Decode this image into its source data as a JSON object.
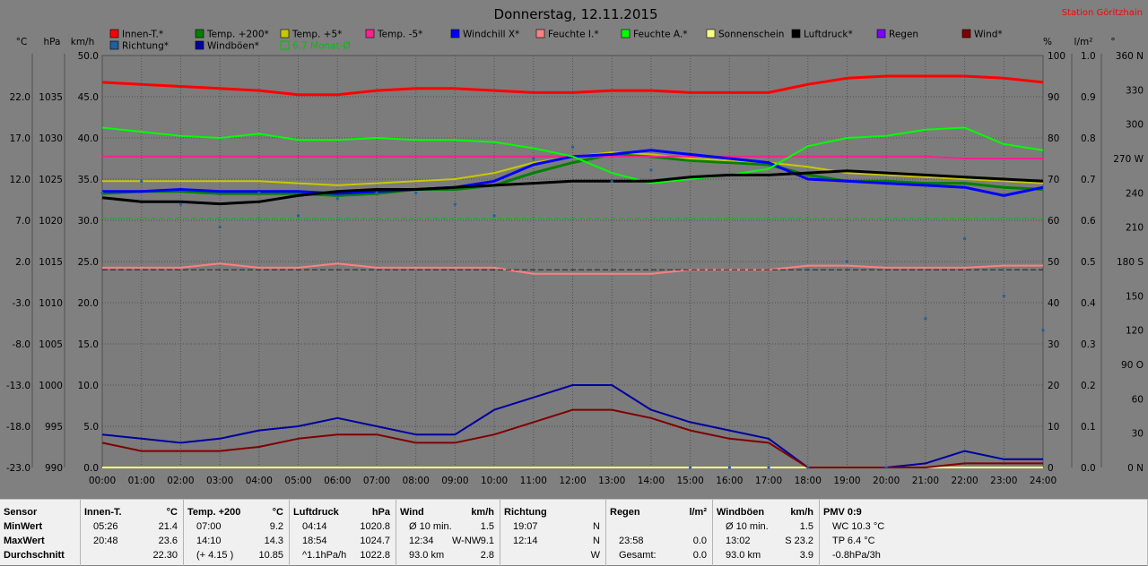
{
  "title": "Donnerstag, 12.11.2015",
  "station": "Station Göritzhain",
  "axis_units": {
    "temp": "°C",
    "pressure": "hPa",
    "speed": "km/h",
    "percent": "%",
    "rain": "l/m²",
    "direction": "°"
  },
  "legend": [
    {
      "label": "Innen-T.*",
      "color": "#ff0000",
      "dashed": false
    },
    {
      "label": "Temp. +200*",
      "color": "#008000",
      "dashed": false
    },
    {
      "label": "Temp. +5*",
      "color": "#c8c800",
      "dashed": false
    },
    {
      "label": "Temp. -5*",
      "color": "#ff1f8f",
      "dashed": false
    },
    {
      "label": "Windchill X*",
      "color": "#0000ff",
      "dashed": false
    },
    {
      "label": "Feuchte I.*",
      "color": "#ff8080",
      "dashed": false
    },
    {
      "label": "Feuchte A.*",
      "color": "#00ff00",
      "dashed": false
    },
    {
      "label": "Sonnenschein",
      "color": "#ffff80",
      "dashed": false
    },
    {
      "label": "Luftdruck*",
      "color": "#000000",
      "dashed": false
    },
    {
      "label": "Regen",
      "color": "#8000ff",
      "dashed": false
    },
    {
      "label": "Wind*",
      "color": "#800000",
      "dashed": false
    },
    {
      "label": "Richtung*",
      "color": "#2060a0",
      "dashed": false
    },
    {
      "label": "Windböen*",
      "color": "#0000a0",
      "dashed": false
    },
    {
      "label": "6.7 Monat-Ø",
      "color": "#00c000",
      "dashed": true
    }
  ],
  "chart_data": {
    "type": "line",
    "title": "Donnerstag, 12.11.2015",
    "x_ticks": [
      "00:00",
      "01:00",
      "02:00",
      "03:00",
      "04:00",
      "05:00",
      "06:00",
      "07:00",
      "08:00",
      "09:00",
      "10:00",
      "11:00",
      "12:00",
      "13:00",
      "14:00",
      "15:00",
      "16:00",
      "17:00",
      "18:00",
      "19:00",
      "20:00",
      "21:00",
      "22:00",
      "23:00",
      "24:00"
    ],
    "axes": {
      "temp": {
        "label": "°C",
        "ticks": [
          "22.0",
          "17.0",
          "12.0",
          "7.0",
          "2.0",
          "-3.0",
          "-8.0",
          "-13.0",
          "-18.0",
          "-23.0"
        ],
        "range": [
          -23,
          27
        ]
      },
      "pressure": {
        "label": "hPa",
        "ticks": [
          "1035",
          "1030",
          "1025",
          "1020",
          "1015",
          "1010",
          "1005",
          "1000",
          "995",
          "990"
        ],
        "range": [
          990,
          1040
        ]
      },
      "speed": {
        "label": "km/h",
        "ticks": [
          "50.0",
          "45.0",
          "40.0",
          "35.0",
          "30.0",
          "25.0",
          "20.0",
          "15.0",
          "10.0",
          "5.0",
          "0.0"
        ],
        "range": [
          0,
          50
        ]
      },
      "percent": {
        "label": "%",
        "ticks": [
          "100",
          "90",
          "80",
          "70",
          "60",
          "50",
          "40",
          "30",
          "20",
          "10",
          "0"
        ],
        "range": [
          0,
          100
        ]
      },
      "rain": {
        "label": "l/m²",
        "ticks": [
          "1.0",
          "0.9",
          "0.8",
          "0.7",
          "0.6",
          "0.5",
          "0.4",
          "0.3",
          "0.2",
          "0.1",
          "0.0"
        ],
        "range": [
          0,
          1
        ]
      },
      "direction": {
        "label": "°",
        "ticks": [
          "360 N",
          "330",
          "300",
          "270 W",
          "240",
          "210",
          "180 S",
          "150",
          "120",
          "90 O",
          "60",
          "30",
          "0 N"
        ],
        "range": [
          0,
          360
        ]
      }
    },
    "grid": true,
    "x_hours": [
      0,
      1,
      2,
      3,
      4,
      5,
      6,
      7,
      8,
      9,
      10,
      11,
      12,
      13,
      14,
      15,
      16,
      17,
      18,
      19,
      20,
      21,
      22,
      23,
      24
    ],
    "series": [
      {
        "name": "Innen-T.*",
        "color": "#ff0000",
        "axis": "percent",
        "width": 3,
        "values": [
          93.5,
          93,
          92.5,
          92,
          91.5,
          90.5,
          90.5,
          91.5,
          92,
          92,
          91.5,
          91,
          91,
          91.5,
          91.5,
          91,
          91,
          91,
          93,
          94.5,
          95,
          95,
          95,
          94.5,
          93.5
        ]
      },
      {
        "name": "Temp. +200*",
        "color": "#008000",
        "axis": "percent",
        "width": 3,
        "values": [
          66.5,
          67,
          67,
          66.5,
          66.5,
          66.5,
          66,
          66.5,
          67.5,
          67.5,
          68.5,
          71.5,
          74,
          76,
          75.5,
          74.5,
          74,
          73.5,
          71,
          69.5,
          69.5,
          69,
          69,
          68,
          67.5
        ]
      },
      {
        "name": "Temp. +5*",
        "color": "#c8c800",
        "axis": "percent",
        "width": 2,
        "values": [
          69.5,
          69.5,
          69.5,
          69.5,
          69.5,
          69,
          68.5,
          69,
          69.5,
          70,
          71.5,
          74,
          75.5,
          76.5,
          76,
          75,
          74.5,
          74,
          73,
          71.5,
          71,
          70.5,
          70,
          69.5,
          69
        ]
      },
      {
        "name": "Temp. -5*",
        "color": "#ff1f8f",
        "axis": "percent",
        "width": 2,
        "values": [
          75.5,
          75.5,
          75.5,
          75.5,
          75.5,
          75.5,
          75.5,
          75.5,
          75.5,
          75.5,
          75.5,
          75.5,
          75.5,
          75.5,
          75.5,
          75.5,
          75.5,
          75.5,
          75.5,
          75.5,
          75.5,
          75.5,
          75,
          75,
          75
        ]
      },
      {
        "name": "Windchill X*",
        "color": "#0000ff",
        "axis": "percent",
        "width": 3,
        "values": [
          67,
          67,
          67.5,
          67,
          67,
          67,
          66.5,
          67,
          67.5,
          68,
          69.5,
          73.5,
          75.5,
          76,
          77,
          76,
          75,
          74,
          70,
          69.5,
          69,
          68.5,
          68,
          66,
          68
        ]
      },
      {
        "name": "Feuchte I.*",
        "color": "#ff8080",
        "axis": "percent",
        "width": 2,
        "values": [
          48.5,
          48.5,
          48.5,
          49.5,
          48.5,
          48.5,
          49.5,
          48.5,
          48.5,
          48.5,
          48.5,
          47,
          47,
          47,
          47,
          48,
          48,
          48,
          49,
          49,
          48.5,
          48.5,
          48.5,
          49,
          49
        ]
      },
      {
        "name": "Feuchte A.*",
        "color": "#00ff00",
        "axis": "percent",
        "width": 2,
        "values": [
          82.5,
          81.5,
          80.5,
          80,
          81,
          79.5,
          79.5,
          80,
          79.5,
          79.5,
          79,
          77.5,
          75.5,
          71.5,
          69,
          70,
          71,
          72.5,
          78,
          80,
          80.5,
          82,
          82.5,
          78.5,
          77
        ]
      },
      {
        "name": "Luftdruck*",
        "color": "#000000",
        "axis": "percent",
        "width": 3,
        "values": [
          65.5,
          64.5,
          64.5,
          64,
          64.5,
          66,
          67,
          67.5,
          67.5,
          68,
          68.5,
          69,
          69.5,
          69.5,
          69.5,
          70.5,
          71,
          71,
          71.5,
          72,
          71.5,
          71,
          70.5,
          70,
          69.5
        ]
      },
      {
        "name": "Sonnenschein",
        "color": "#ffff80",
        "axis": "percent",
        "width": 2,
        "values": [
          0,
          0,
          0,
          0,
          0,
          0,
          0,
          0,
          0,
          0,
          0,
          0,
          0,
          0,
          0,
          0,
          0,
          0,
          0,
          0,
          0,
          0,
          0,
          0,
          0
        ]
      },
      {
        "name": "6.7 Monat-Ø",
        "color": "#00c000",
        "axis": "percent",
        "width": 1,
        "dashed": true,
        "values": [
          60.5,
          60.5,
          60.5,
          60.5,
          60.5,
          60.5,
          60.5,
          60.5,
          60.5,
          60.5,
          60.5,
          60.5,
          60.5,
          60.5,
          60.5,
          60.5,
          60.5,
          60.5,
          60.5,
          60.5,
          60.5,
          60.5,
          60.5,
          60.5,
          60.5
        ]
      },
      {
        "name": "",
        "color": "#202020",
        "axis": "percent",
        "width": 1,
        "dashed": true,
        "values": [
          48,
          48,
          48,
          48,
          48,
          48,
          48,
          48,
          48,
          48,
          48,
          48,
          48,
          48,
          48,
          48,
          48,
          48,
          48,
          48,
          48,
          48,
          48,
          48,
          48
        ]
      },
      {
        "name": "Windböen*",
        "color": "#0000a0",
        "axis": "speed",
        "width": 2,
        "values": [
          4,
          3.5,
          3,
          3.5,
          4.5,
          5,
          6,
          5,
          4,
          4,
          7,
          8.5,
          10,
          10,
          7,
          5.5,
          4.5,
          3.5,
          0,
          0,
          0,
          0.5,
          2,
          1,
          1
        ]
      },
      {
        "name": "Wind*",
        "color": "#800000",
        "axis": "speed",
        "width": 2,
        "values": [
          3,
          2,
          2,
          2,
          2.5,
          3.5,
          4,
          4,
          3,
          3,
          4,
          5.5,
          7,
          7,
          6,
          4.5,
          3.5,
          3,
          0,
          0,
          0,
          0,
          0.5,
          0.5,
          0.5
        ]
      },
      {
        "name": "Richtung*",
        "color": "#2060a0",
        "axis": "direction",
        "scatter": true,
        "values": [
          240,
          250,
          230,
          210,
          240,
          220,
          235,
          240,
          240,
          230,
          220,
          270,
          280,
          250,
          260,
          0,
          0,
          0,
          0,
          180,
          0,
          130,
          200,
          150,
          120
        ]
      }
    ]
  },
  "stats": {
    "col0": {
      "h": "Sensor",
      "r1": "MinWert",
      "r2": "MaxWert",
      "r3": "Durchschnitt"
    },
    "col1": {
      "h1": "Innen-T.",
      "h2": "°C",
      "r1a": "05:26",
      "r1b": "21.4",
      "r2a": "20:48",
      "r2b": "23.6",
      "r3b": "22.30"
    },
    "col2": {
      "h1": "Temp. +200",
      "h2": "°C",
      "r1a": "07:00",
      "r1b": "9.2",
      "r2a": "14:10",
      "r2b": "14.3",
      "r3a": "(+ 4.15 )",
      "r3b": "10.85"
    },
    "col3": {
      "h1": "Luftdruck",
      "h2": "hPa",
      "r1a": "04:14",
      "r1b": "1020.8",
      "r2a": "18:54",
      "r2b": "1024.7",
      "r3a": "^1.1hPa/h",
      "r3b": "1022.8"
    },
    "col4": {
      "h1": "Wind",
      "h2": "km/h",
      "r1a": "Ø 10 min.",
      "r1b": "1.5",
      "r2a": "12:34",
      "r2m": "W-NW",
      "r2b": "9.1",
      "r3a": "93.0 km",
      "r3b": "2.8"
    },
    "col5": {
      "h1": "Richtung",
      "r1a": "19:07",
      "r1b": "N",
      "r2a": "12:14",
      "r2b": "N",
      "r3b": "W"
    },
    "col6": {
      "h1": "Regen",
      "h2": "l/m²",
      "r2a": "23:58",
      "r2b": "0.0",
      "r3a": "Gesamt:",
      "r3b": "0.0"
    },
    "col7": {
      "h1": "Windböen",
      "h2": "km/h",
      "r1a": "Ø 10 min.",
      "r1b": "1.5",
      "r2a": "13:02",
      "r2b": "S 23.2",
      "r3a": "93.0 km",
      "r3b": "3.9"
    },
    "col8": {
      "h1": "PMV 0:9",
      "r1a": "WC 10.3 °C",
      "r2a": "TP 6.4 °C",
      "r3a": "-0.8hPa/3h"
    }
  }
}
